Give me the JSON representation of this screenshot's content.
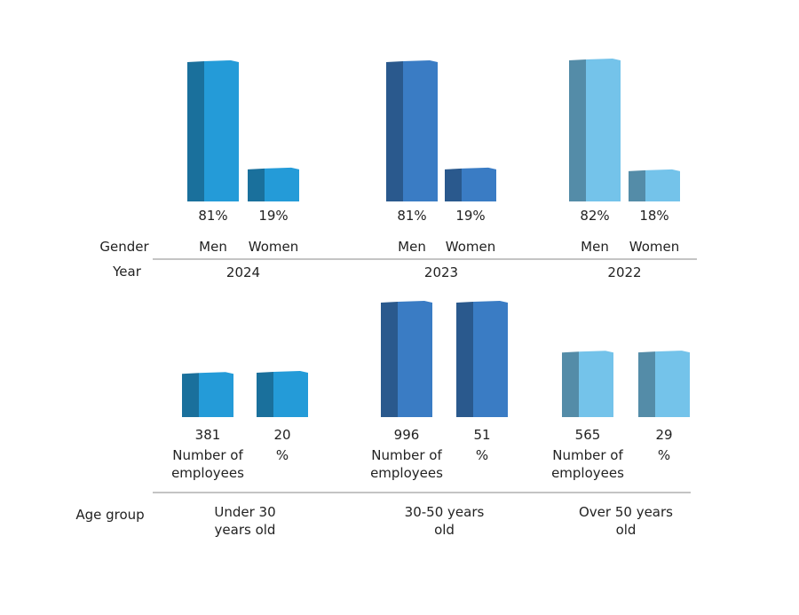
{
  "chart_data": [
    {
      "type": "bar3d",
      "axis_title": "Gender",
      "group_axis_title": "Year",
      "categories": [
        "Men",
        "Women"
      ],
      "series": [
        {
          "name": "2024",
          "color": "#249bd8",
          "values": [
            81,
            19
          ],
          "value_labels": [
            "81%",
            "19%"
          ]
        },
        {
          "name": "2023",
          "color": "#3a7cc4",
          "values": [
            81,
            19
          ],
          "value_labels": [
            "81%",
            "19%"
          ]
        },
        {
          "name": "2022",
          "color": "#74c3ea",
          "values": [
            82,
            18
          ],
          "value_labels": [
            "82%",
            "18%"
          ]
        }
      ]
    },
    {
      "type": "bar3d",
      "axis_title": "Age group",
      "categories": [
        "Number of employees",
        "%"
      ],
      "series": [
        {
          "name": "Under 30 years old",
          "color": "#249bd8",
          "values": [
            381,
            20
          ]
        },
        {
          "name": "30-50 years old",
          "color": "#3a7cc4",
          "values": [
            996,
            51
          ]
        },
        {
          "name": "Over 50 years old",
          "color": "#74c3ea",
          "values": [
            565,
            29
          ]
        }
      ]
    }
  ]
}
